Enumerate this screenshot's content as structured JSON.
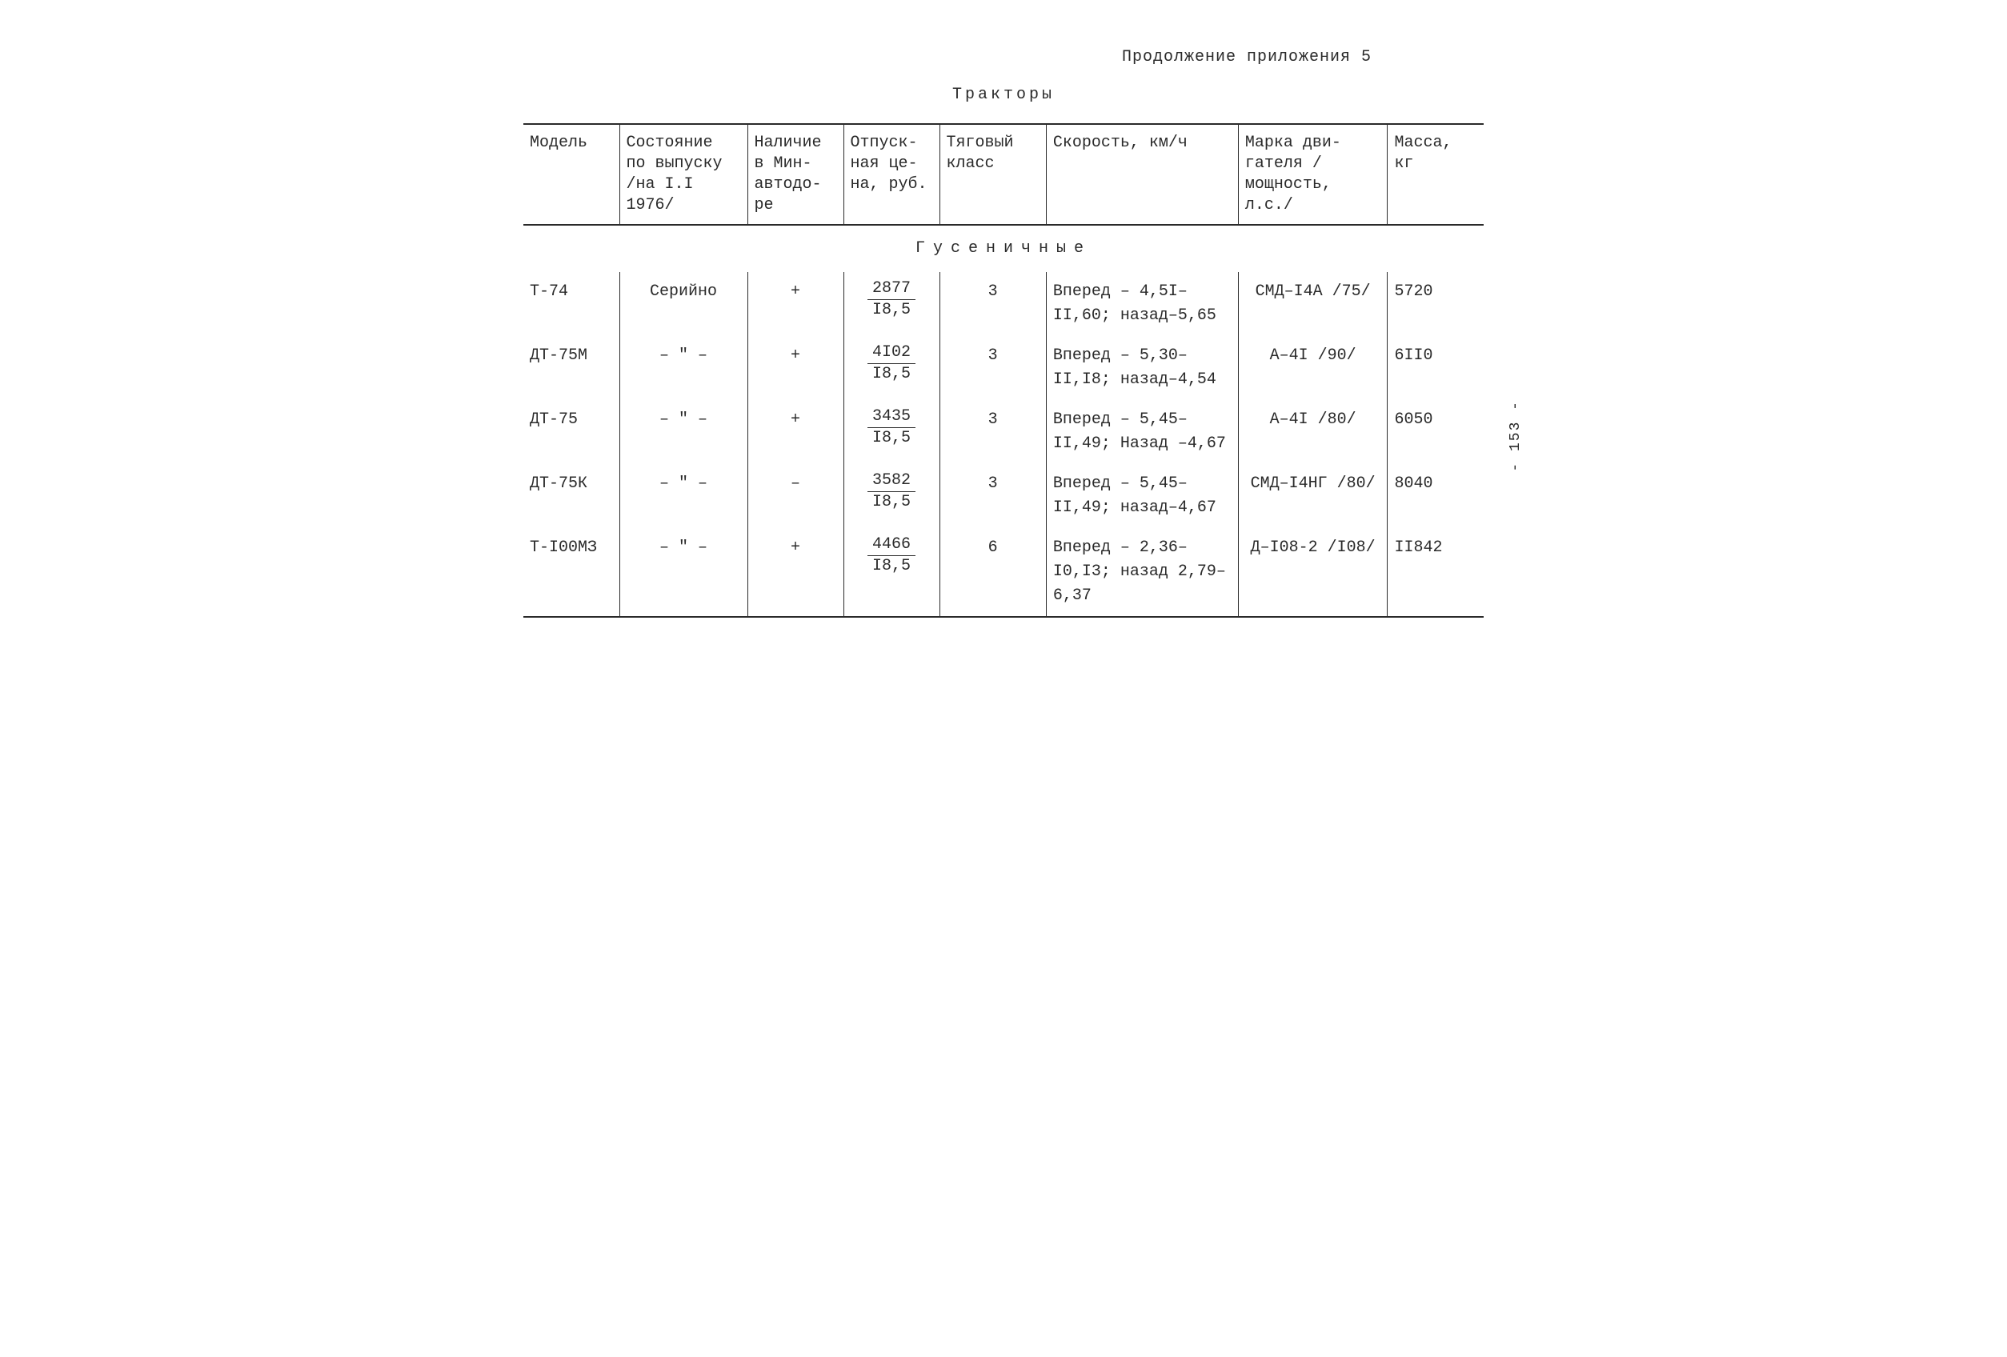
{
  "header_right": "Продолжение приложения 5",
  "title": "Тракторы",
  "sidenote": "- 153 -",
  "columns": {
    "model": "Модель",
    "status": "Состояние по выпуску /на I.I 1976/",
    "availability": "Наличие в Мин-автодо-ре",
    "price": "Отпуск-ная це-на, руб.",
    "class": "Тяговый класс",
    "speed": "Скорость, км/ч",
    "engine": "Марка дви-гателя /мощность, л.с./",
    "mass": "Масса, кг"
  },
  "section_title": "Гусеничные",
  "price_denominator": "I8,5",
  "ditto": "‒ \" ‒",
  "rows": [
    {
      "model": "Т-74",
      "status": "Серийно",
      "availability": "+",
      "price_num": "2877",
      "class": "3",
      "speed": "Вперед – 4,5I–II,60; назад–5,65",
      "engine": "СМД–I4A /75/",
      "mass": "5720"
    },
    {
      "model": "ДТ-75М",
      "status": "ditto",
      "availability": "+",
      "price_num": "4I02",
      "class": "3",
      "speed": "Вперед – 5,30–II,I8; назад–4,54",
      "engine": "А–4I /90/",
      "mass": "6II0"
    },
    {
      "model": "ДТ-75",
      "status": "ditto",
      "availability": "+",
      "price_num": "3435",
      "class": "3",
      "speed": "Вперед – 5,45–II,49; Назад –4,67",
      "engine": "А–4I /80/",
      "mass": "6050"
    },
    {
      "model": "ДТ-75К",
      "status": "ditto",
      "availability": "‒",
      "price_num": "3582",
      "class": "3",
      "speed": "Вперед – 5,45–II,49; назад–4,67",
      "engine": "СМД–I4НГ /80/",
      "mass": "8040"
    },
    {
      "model": "Т-I00МЗ",
      "status": "ditto",
      "availability": "+",
      "price_num": "4466",
      "class": "6",
      "speed": "Вперед – 2,36–I0,I3; назад 2,79–6,37",
      "engine": "Д–I08-2 /I08/",
      "mass": "II842"
    }
  ]
}
